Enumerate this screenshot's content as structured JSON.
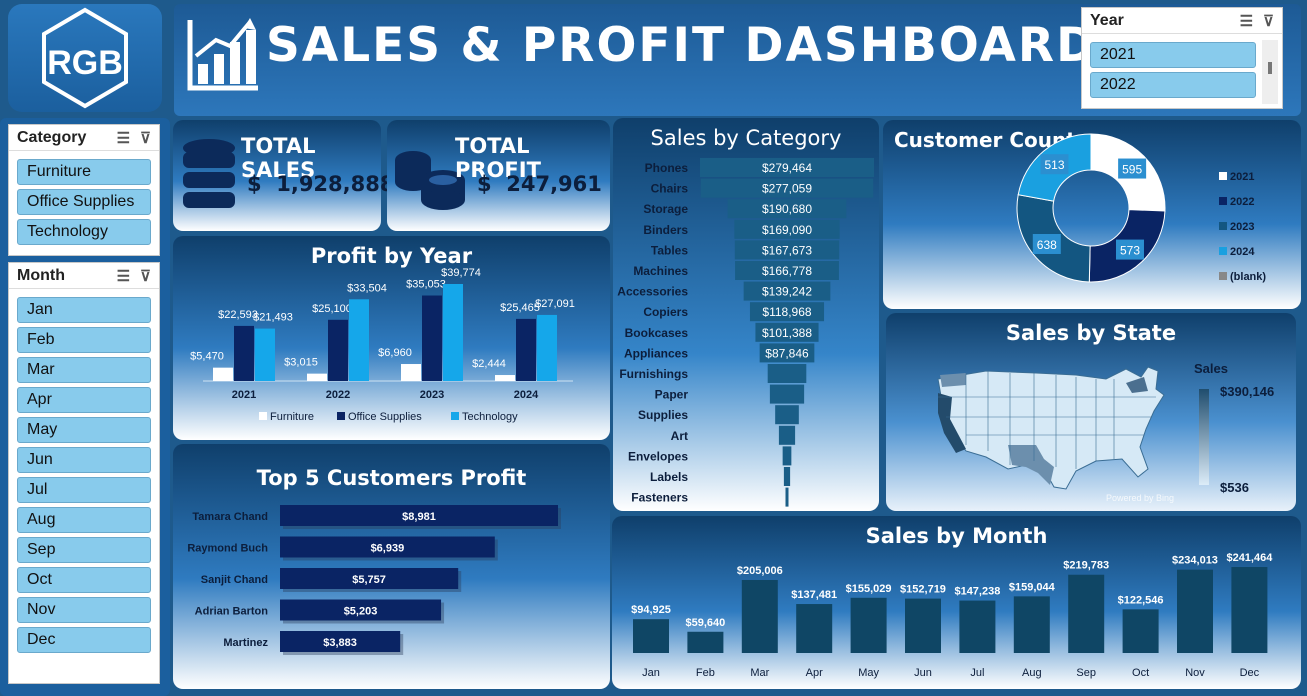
{
  "header": {
    "logo_text": "RGB",
    "title": "SALES & PROFIT DASHBOARD"
  },
  "year_slicer": {
    "title": "Year",
    "options": [
      "2021",
      "2022"
    ]
  },
  "category_slicer": {
    "title": "Category",
    "options": [
      "Furniture",
      "Office Supplies",
      "Technology"
    ]
  },
  "month_slicer": {
    "title": "Month",
    "options": [
      "Jan",
      "Feb",
      "Mar",
      "Apr",
      "May",
      "Jun",
      "Jul",
      "Aug",
      "Sep",
      "Oct",
      "Nov",
      "Dec"
    ]
  },
  "kpis": {
    "sales": {
      "title": "TOTAL SALES",
      "value": "$  1,928,888"
    },
    "profit": {
      "title": "TOTAL PROFIT",
      "value": "$  247,961"
    }
  },
  "colors": {
    "furniture": "#ffffff",
    "office_supplies": "#0a2464",
    "technology": "#15a7ea",
    "dark_bar": "#0f4665",
    "funnel": "#1a5e87"
  },
  "chart_data": [
    {
      "id": "profit_by_year",
      "type": "bar",
      "title": "Profit by Year",
      "categories": [
        "2021",
        "2022",
        "2023",
        "2024"
      ],
      "series": [
        {
          "name": "Furniture",
          "values": [
            5470,
            3015,
            6960,
            2444
          ],
          "labels": [
            "$5,470",
            "$3,015",
            "$6,960",
            "$2,444"
          ]
        },
        {
          "name": "Office Supplies",
          "values": [
            22593,
            25100,
            35053,
            25465
          ],
          "labels": [
            "$22,593",
            "$25,100",
            "$35,053",
            "$25,465"
          ]
        },
        {
          "name": "Technology",
          "values": [
            21493,
            33504,
            39774,
            27091
          ],
          "labels": [
            "$21,493",
            "$33,504",
            "$39,774",
            "$27,091"
          ]
        }
      ],
      "legend": "bottom"
    },
    {
      "id": "sales_by_category",
      "type": "bar",
      "title": "Sales by Category",
      "categories": [
        "Phones",
        "Chairs",
        "Storage",
        "Binders",
        "Tables",
        "Machines",
        "Accessories",
        "Copiers",
        "Bookcases",
        "Appliances",
        "Furnishings",
        "Paper",
        "Supplies",
        "Art",
        "Envelopes",
        "Labels",
        "Fasteners"
      ],
      "values": [
        279464,
        277059,
        190680,
        169090,
        167673,
        166778,
        139242,
        118968,
        101388,
        87846,
        62000,
        55000,
        38000,
        26000,
        14000,
        10000,
        3000
      ],
      "labels": [
        "$279,464",
        "$277,059",
        "$190,680",
        "$169,090",
        "$167,673",
        "$166,778",
        "$139,242",
        "$118,968",
        "$101,388",
        "$87,846",
        "",
        "",
        "",
        "",
        "",
        "",
        ""
      ]
    },
    {
      "id": "customer_count",
      "type": "pie",
      "title": "Customer Count",
      "categories": [
        "2021",
        "2022",
        "2023",
        "2024",
        "(blank)"
      ],
      "values": [
        595,
        573,
        638,
        513,
        0
      ],
      "labels": [
        "595",
        "573",
        "638",
        "513",
        ""
      ],
      "colors": [
        "#ffffff",
        "#0a2464",
        "#135681",
        "#1aa0e0",
        "#888888"
      ],
      "legend": "right"
    },
    {
      "id": "sales_by_state",
      "type": "heatmap",
      "title": "Sales by State",
      "legend_title": "Sales",
      "max_label": "$390,146",
      "min_label": "$536",
      "watermark": "Powered by Bing"
    },
    {
      "id": "top5_customers",
      "type": "bar",
      "title": "Top 5 Customers Profit",
      "categories": [
        "Tamara Chand",
        "Raymond Buch",
        "Sanjit Chand",
        "Adrian Barton",
        "Martinez"
      ],
      "values": [
        8981,
        6939,
        5757,
        5203,
        3883
      ],
      "labels": [
        "$8,981",
        "$6,939",
        "$5,757",
        "$5,203",
        "$3,883"
      ]
    },
    {
      "id": "sales_by_month",
      "type": "bar",
      "title": "Sales by Month",
      "categories": [
        "Jan",
        "Feb",
        "Mar",
        "Apr",
        "May",
        "Jun",
        "Jul",
        "Aug",
        "Sep",
        "Oct",
        "Nov",
        "Dec"
      ],
      "values": [
        94925,
        59640,
        205006,
        137481,
        155029,
        152719,
        147238,
        159044,
        219783,
        122546,
        234013,
        241464
      ],
      "labels": [
        "$94,925",
        "$59,640",
        "$205,006",
        "$137,481",
        "$155,029",
        "$152,719",
        "$147,238",
        "$159,044",
        "$219,783",
        "$122,546",
        "$234,013",
        "$241,464"
      ]
    }
  ]
}
